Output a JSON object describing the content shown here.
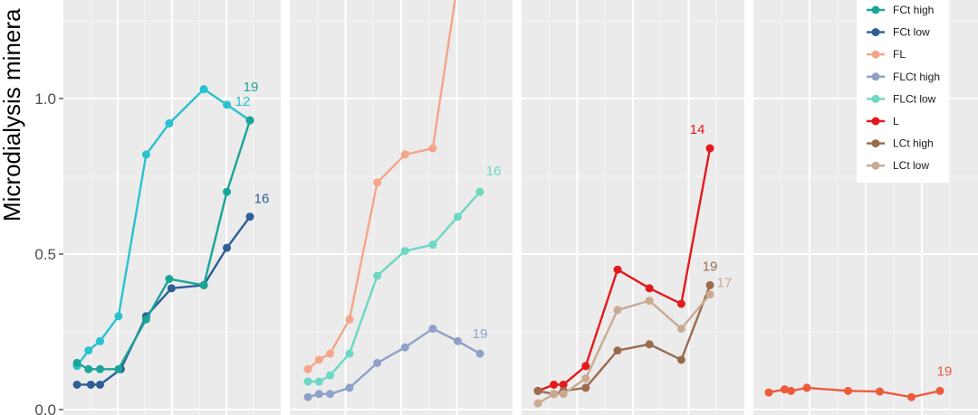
{
  "chart_data": {
    "type": "line",
    "ylabel": "Microdialysis minera",
    "ylim": [
      0,
      1.3
    ],
    "yticks": [
      "0.0",
      "0.5",
      "1.0"
    ],
    "ytick_values": [
      0,
      0.5,
      1.0
    ],
    "grid": true,
    "legend_position": "top-right",
    "legend": [
      {
        "name": "FCt high",
        "color": "#1aa598"
      },
      {
        "name": "FCt low",
        "color": "#2e5e96"
      },
      {
        "name": "FL",
        "color": "#f4a58a"
      },
      {
        "name": "FLCt high",
        "color": "#8fa1c8"
      },
      {
        "name": "FLCt low",
        "color": "#6dd8c4"
      },
      {
        "name": "L",
        "color": "#e31a1c"
      },
      {
        "name": "LCt high",
        "color": "#9a6c4e"
      },
      {
        "name": "LCt low",
        "color": "#c9ab94"
      }
    ],
    "panels": [
      {
        "series": [
          {
            "color": "#29c2cf",
            "end_label": "12",
            "x": [
              0,
              0.5,
              1,
              1.8,
              3,
              4,
              5.5,
              6.5,
              7.5
            ],
            "y": [
              0.14,
              0.19,
              0.22,
              0.3,
              0.82,
              0.92,
              1.03,
              0.98,
              0.93
            ]
          },
          {
            "color": "#2e5e96",
            "end_label": "16",
            "x": [
              0,
              0.6,
              1,
              1.9,
              3,
              4.1,
              5.5,
              6.5,
              7.5
            ],
            "y": [
              0.08,
              0.08,
              0.08,
              0.13,
              0.3,
              0.39,
              0.4,
              0.52,
              0.62
            ]
          },
          {
            "color": "#1aa598",
            "end_label": "19",
            "x": [
              0,
              0.5,
              1,
              1.8,
              3,
              4,
              5.5,
              6.5,
              7.5
            ],
            "y": [
              0.15,
              0.13,
              0.13,
              0.13,
              0.29,
              0.42,
              0.4,
              0.7,
              0.93
            ]
          }
        ]
      },
      {
        "series": [
          {
            "color": "#f4a58a",
            "end_label": "",
            "x": [
              0,
              0.4,
              0.8,
              1.5,
              2.5,
              3.5,
              4.5,
              5.4,
              6.2
            ],
            "y": [
              0.13,
              0.16,
              0.18,
              0.29,
              0.73,
              0.82,
              0.84,
              1.4,
              1.6
            ]
          },
          {
            "color": "#6dd8c4",
            "end_label": "16",
            "x": [
              0,
              0.4,
              0.8,
              1.5,
              2.5,
              3.5,
              4.5,
              5.4,
              6.2
            ],
            "y": [
              0.09,
              0.09,
              0.11,
              0.18,
              0.43,
              0.51,
              0.53,
              0.62,
              0.7
            ]
          },
          {
            "color": "#8fa1c8",
            "end_label": "19",
            "x": [
              0,
              0.4,
              0.8,
              1.5,
              2.5,
              3.5,
              4.5,
              5.4,
              6.2
            ],
            "y": [
              0.04,
              0.05,
              0.05,
              0.07,
              0.15,
              0.2,
              0.26,
              0.22,
              0.18
            ]
          }
        ]
      },
      {
        "series": [
          {
            "color": "#e31a1c",
            "end_label": "14",
            "x": [
              0,
              0.5,
              0.8,
              1.5,
              2.5,
              3.5,
              4.5,
              5.4
            ],
            "y": [
              0.06,
              0.08,
              0.08,
              0.14,
              0.45,
              0.39,
              0.34,
              0.84
            ]
          },
          {
            "color": "#9a6c4e",
            "end_label": "19",
            "x": [
              0,
              0.5,
              0.8,
              1.5,
              2.5,
              3.5,
              4.5,
              5.4
            ],
            "y": [
              0.06,
              0.05,
              0.06,
              0.07,
              0.19,
              0.21,
              0.16,
              0.4
            ]
          },
          {
            "color": "#c9ab94",
            "end_label": "17",
            "x": [
              0,
              0.5,
              0.8,
              1.5,
              2.5,
              3.5,
              4.5,
              5.4
            ],
            "y": [
              0.02,
              0.05,
              0.05,
              0.1,
              0.32,
              0.35,
              0.26,
              0.37
            ]
          }
        ]
      },
      {
        "series": [
          {
            "color": "#ee5a3c",
            "end_label": "19",
            "x": [
              0,
              0.5,
              0.7,
              1.2,
              2.5,
              3.5,
              4.5,
              5.4
            ],
            "y": [
              0.055,
              0.065,
              0.06,
              0.07,
              0.06,
              0.058,
              0.04,
              0.06
            ]
          }
        ]
      }
    ]
  }
}
